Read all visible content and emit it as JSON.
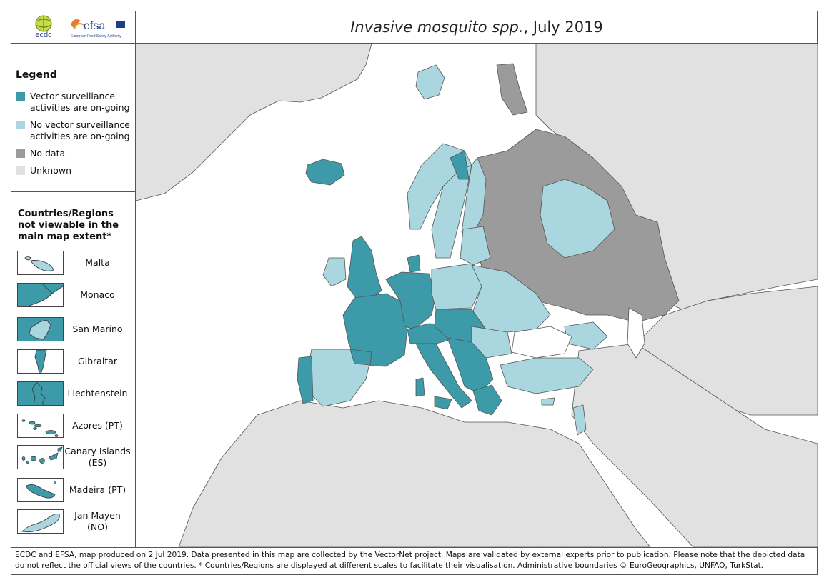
{
  "title": {
    "italic": "Invasive mosquito spp.",
    "rest": ", July 2019"
  },
  "logos": {
    "ecdc": "ecdc",
    "efsa": "efsa",
    "efsa_subtitle": "European Food Safety Authority"
  },
  "legend": {
    "title": "Legend",
    "items": [
      {
        "label": "Vector surveillance activities are on-going",
        "color": "#3d9aa8"
      },
      {
        "label": "No vector surveillance activities are on-going",
        "color": "#a9d6df"
      },
      {
        "label": "No data",
        "color": "#9b9b9b"
      },
      {
        "label": "Unknown",
        "color": "#e1e1e1"
      }
    ]
  },
  "insets": {
    "title": "Countries/Regions not viewable in the main map extent*",
    "items": [
      {
        "label": "Malta",
        "status": "no-surveillance"
      },
      {
        "label": "Monaco",
        "status": "surveillance"
      },
      {
        "label": "San Marino",
        "status": "surveillance"
      },
      {
        "label": "Gibraltar",
        "status": "surveillance"
      },
      {
        "label": "Liechtenstein",
        "status": "surveillance"
      },
      {
        "label": "Azores (PT)",
        "status": "surveillance"
      },
      {
        "label": "Canary Islands (ES)",
        "status": "surveillance"
      },
      {
        "label": "Madeira (PT)",
        "status": "surveillance"
      },
      {
        "label": "Jan Mayen (NO)",
        "status": "no-surveillance"
      }
    ]
  },
  "colors": {
    "surveillance": "#3d9aa8",
    "no_surveillance": "#a9d6df",
    "no_data": "#9b9b9b",
    "unknown": "#e1e1e1",
    "sea": "#ffffff",
    "border": "#555555"
  },
  "footer": "ECDC and EFSA, map produced on 2 Jul 2019. Data presented in this map are collected by the VectorNet project. Maps are validated by external experts prior to publication. Please note that the depicted data do not reflect the official views of the countries. * Countries/Regions are displayed at different scales to facilitate their visualisation. Administrative boundaries © EuroGeographics, UNFAO, TurkStat."
}
